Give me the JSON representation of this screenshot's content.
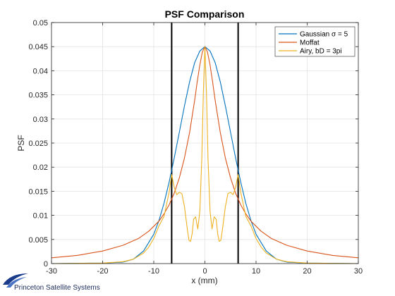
{
  "chart_data": {
    "type": "line",
    "title": "PSF Comparison",
    "xlabel": "x (mm)",
    "ylabel": "PSF",
    "xlim": [
      -30,
      30
    ],
    "ylim": [
      0,
      0.05
    ],
    "xticks": [
      "-30",
      "-20",
      "-10",
      "0",
      "10",
      "20",
      "30"
    ],
    "yticks": [
      "0",
      "0.005",
      "0.01",
      "0.015",
      "0.02",
      "0.025",
      "0.03",
      "0.035",
      "0.04",
      "0.045",
      "0.05"
    ],
    "grid": true,
    "legend_position": "top-right",
    "vertical_lines": [
      -6.5,
      6.5
    ],
    "series": [
      {
        "name": "Gaussian σ = 5",
        "color": "#0072BD",
        "x": [
          -30,
          -20,
          -16,
          -14,
          -12,
          -10,
          -9,
          -8,
          -7,
          -6,
          -5,
          -4,
          -3,
          -2,
          -1,
          0,
          1,
          2,
          3,
          4,
          5,
          6,
          7,
          8,
          9,
          10,
          12,
          14,
          16,
          20,
          30
        ],
        "y": [
          0,
          0.0001,
          0.0003,
          0.0009,
          0.0026,
          0.0061,
          0.0089,
          0.0125,
          0.0169,
          0.0219,
          0.0273,
          0.0327,
          0.0377,
          0.0417,
          0.0441,
          0.045,
          0.0441,
          0.0417,
          0.0377,
          0.0327,
          0.0273,
          0.0219,
          0.0169,
          0.0125,
          0.0089,
          0.0061,
          0.0026,
          0.0009,
          0.0003,
          0.0001,
          0
        ]
      },
      {
        "name": "Moffat",
        "color": "#D95319",
        "x": [
          -30,
          -25,
          -20,
          -16,
          -13,
          -11,
          -9,
          -8,
          -7,
          -6,
          -5,
          -4,
          -3,
          -2,
          -1.5,
          -1,
          -0.5,
          0,
          0.5,
          1,
          1.5,
          2,
          3,
          4,
          5,
          6,
          7,
          8,
          9,
          11,
          13,
          16,
          20,
          25,
          30
        ],
        "y": [
          0.0012,
          0.0017,
          0.0026,
          0.0038,
          0.0052,
          0.0067,
          0.0088,
          0.0103,
          0.0122,
          0.0146,
          0.0178,
          0.0219,
          0.0272,
          0.0339,
          0.0377,
          0.0412,
          0.0439,
          0.045,
          0.0439,
          0.0412,
          0.0377,
          0.0339,
          0.0272,
          0.0219,
          0.0178,
          0.0146,
          0.0122,
          0.0103,
          0.0088,
          0.0067,
          0.0052,
          0.0038,
          0.0026,
          0.0017,
          0.0012
        ]
      },
      {
        "name": "Airy, bD = 3pi",
        "color": "#EDB120",
        "x": [
          -30,
          -20,
          -16,
          -14,
          -12,
          -11,
          -10,
          -9,
          -8,
          -7,
          -6.5,
          -6,
          -5.5,
          -5,
          -4.5,
          -4,
          -3.7,
          -3.4,
          -3.1,
          -2.8,
          -2.5,
          -2.2,
          -1.8,
          -1.4,
          -1,
          -0.6,
          -0.3,
          0,
          0.3,
          0.6,
          1,
          1.4,
          1.8,
          2.2,
          2.5,
          2.8,
          3.1,
          3.4,
          3.7,
          4,
          4.5,
          5,
          5.5,
          6,
          6.5,
          7,
          8,
          9,
          10,
          11,
          12,
          14,
          16,
          20,
          30
        ],
        "y": [
          0,
          0.0001,
          0.0004,
          0.0009,
          0.0022,
          0.0034,
          0.0052,
          0.0078,
          0.0098,
          0.0148,
          0.0185,
          0.0158,
          0.0143,
          0.0148,
          0.0145,
          0.0118,
          0.0093,
          0.0068,
          0.0048,
          0.0046,
          0.0062,
          0.0092,
          0.0097,
          0.0072,
          0.0108,
          0.0218,
          0.0355,
          0.045,
          0.0355,
          0.0218,
          0.0108,
          0.0072,
          0.0097,
          0.0092,
          0.0062,
          0.0046,
          0.0048,
          0.0068,
          0.0093,
          0.0118,
          0.0145,
          0.0148,
          0.0143,
          0.0158,
          0.0185,
          0.0148,
          0.0098,
          0.0078,
          0.0052,
          0.0034,
          0.0022,
          0.0009,
          0.0004,
          0.0001,
          0
        ]
      }
    ]
  },
  "footer": {
    "logo_text": "Princeton Satellite Systems"
  }
}
